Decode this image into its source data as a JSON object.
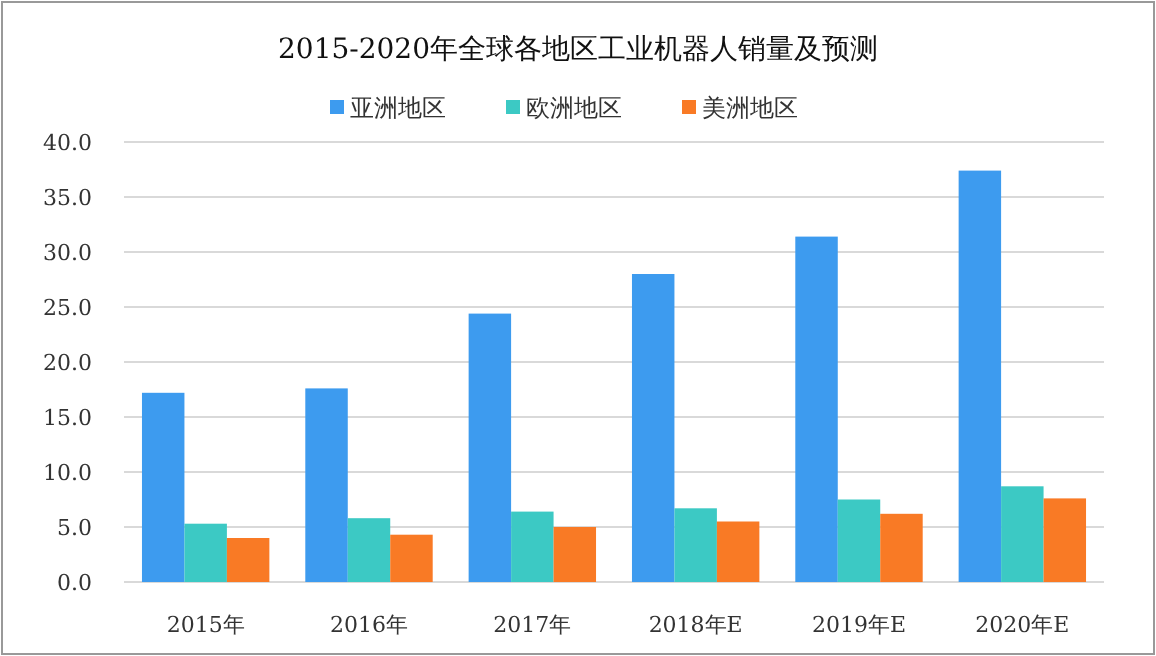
{
  "chart_data": {
    "type": "bar",
    "title": "2015-2020年全球各地区工业机器人销量及预测",
    "categories": [
      "2015年",
      "2016年",
      "2017年",
      "2018年E",
      "2019年E",
      "2020年E"
    ],
    "series": [
      {
        "name": "亚洲地区",
        "color": "#3d9bef",
        "values": [
          17.2,
          17.6,
          24.4,
          28.0,
          31.4,
          37.4
        ]
      },
      {
        "name": "欧洲地区",
        "color": "#3cc9c4",
        "values": [
          5.3,
          5.8,
          6.4,
          6.7,
          7.5,
          8.7
        ]
      },
      {
        "name": "美洲地区",
        "color": "#f97a25",
        "values": [
          4.0,
          4.3,
          5.0,
          5.5,
          6.2,
          7.6
        ]
      }
    ],
    "ylim": [
      0,
      40
    ],
    "yticks": [
      {
        "value": 0,
        "label": "0.0"
      },
      {
        "value": 5,
        "label": "5.0"
      },
      {
        "value": 10,
        "label": "10.0"
      },
      {
        "value": 15,
        "label": "15.0"
      },
      {
        "value": 20,
        "label": "20.0"
      },
      {
        "value": 25,
        "label": "25.0"
      },
      {
        "value": 30,
        "label": "30.0"
      },
      {
        "value": 35,
        "label": "35.0"
      },
      {
        "value": 40,
        "label": "40.0"
      }
    ],
    "grid": "y",
    "legend": "top"
  }
}
